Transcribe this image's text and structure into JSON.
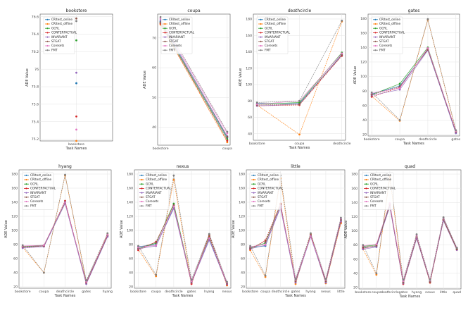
{
  "methods": [
    "CRltest_online",
    "CRltest_offline",
    "GCRL",
    "CONTERFACTUAL",
    "INVARIANT",
    "STGAT",
    "Coresets",
    "FMT"
  ],
  "colors": [
    "#1f77b4",
    "#ff7f0e",
    "#2ca02c",
    "#d62728",
    "#9467bd",
    "#8c564b",
    "#e377c2",
    "#7f7f7f"
  ],
  "chart_data": [
    {
      "type": "scatter",
      "title": "bookstore",
      "xlabel": "Task Names",
      "ylabel": "ADE Value",
      "categories": [
        "bookstore"
      ],
      "ylim": [
        75.18,
        76.63
      ],
      "yticks": [
        75.2,
        75.4,
        75.6,
        75.8,
        76.0,
        76.2,
        76.4,
        76.6
      ],
      "series": [
        {
          "name": "CRltest_online",
          "values": [
            75.84
          ]
        },
        {
          "name": "CRltest_offline",
          "values": [
            75.18
          ]
        },
        {
          "name": "GCRL",
          "values": [
            76.33
          ]
        },
        {
          "name": "CONTERFACTUAL",
          "values": [
            75.46
          ]
        },
        {
          "name": "INVARIANT",
          "values": [
            75.96
          ]
        },
        {
          "name": "STGAT",
          "values": [
            76.58
          ]
        },
        {
          "name": "Coresets",
          "values": [
            75.31
          ]
        },
        {
          "name": "FMT",
          "values": [
            76.55
          ]
        }
      ]
    },
    {
      "type": "line",
      "title": "coupa",
      "xlabel": "",
      "ylabel": "ADE Value",
      "categories": [
        "bookstore",
        "coupa"
      ],
      "ylim": [
        34,
        78
      ],
      "yticks": [
        40,
        50,
        60,
        70
      ],
      "series": [
        {
          "name": "CRltest_online",
          "values": [
            75.5,
            36.5
          ]
        },
        {
          "name": "CRltest_offline",
          "values": [
            74.5,
            35.0
          ]
        },
        {
          "name": "GCRL",
          "values": [
            75.0,
            36.0
          ]
        },
        {
          "name": "CONTERFACTUAL",
          "values": [
            74.8,
            35.5
          ]
        },
        {
          "name": "INVARIANT",
          "values": [
            76.0,
            37.0
          ]
        },
        {
          "name": "STGAT",
          "values": [
            75.2,
            36.8
          ]
        },
        {
          "name": "Coresets",
          "values": [
            76.5,
            38.0
          ]
        },
        {
          "name": "FMT",
          "values": [
            77.0,
            38.5
          ]
        }
      ]
    },
    {
      "type": "line",
      "title": "deathcircle",
      "xlabel": "Task Names",
      "ylabel": "ADE Value",
      "categories": [
        "bookstore",
        "coupa",
        "deathcircle"
      ],
      "ylim": [
        32,
        186
      ],
      "yticks": [
        40,
        60,
        80,
        100,
        120,
        140,
        160,
        180
      ],
      "series": [
        {
          "name": "CRltest_online",
          "values": [
            77,
            77,
            136
          ]
        },
        {
          "name": "CRltest_offline",
          "values": [
            75,
            39,
            177
          ]
        },
        {
          "name": "GCRL",
          "values": [
            76,
            78,
            139
          ]
        },
        {
          "name": "CONTERFACTUAL",
          "values": [
            74,
            75,
            135
          ]
        },
        {
          "name": "INVARIANT",
          "values": [
            74,
            76,
            137
          ]
        },
        {
          "name": "STGAT",
          "values": [
            75,
            76,
            136
          ]
        },
        {
          "name": "Coresets",
          "values": [
            76,
            80,
            138
          ]
        },
        {
          "name": "FMT",
          "values": [
            78,
            80,
            178
          ]
        }
      ]
    },
    {
      "type": "line",
      "title": "gates",
      "xlabel": "Task Names",
      "ylabel": "ADE Value",
      "categories": [
        "bookstore",
        "coupa",
        "deathcircle",
        "gates"
      ],
      "ylim": [
        18,
        186
      ],
      "yticks": [
        20,
        40,
        60,
        80,
        100,
        120,
        140,
        160,
        180
      ],
      "series": [
        {
          "name": "CRltest_online",
          "values": [
            76,
            87,
            137,
            22
          ]
        },
        {
          "name": "CRltest_offline",
          "values": [
            73,
            39,
            178,
            25
          ]
        },
        {
          "name": "GCRL",
          "values": [
            75,
            90,
            140,
            24
          ]
        },
        {
          "name": "CONTERFACTUAL",
          "values": [
            72,
            85,
            138,
            23
          ]
        },
        {
          "name": "INVARIANT",
          "values": [
            74,
            82,
            136,
            22
          ]
        },
        {
          "name": "STGAT",
          "values": [
            75,
            86,
            137,
            24
          ]
        },
        {
          "name": "Coresets",
          "values": [
            77,
            84,
            139,
            25
          ]
        },
        {
          "name": "FMT",
          "values": [
            78,
            40,
            179,
            26
          ]
        }
      ]
    },
    {
      "type": "line",
      "title": "hyang",
      "xlabel": "Task Names",
      "ylabel": "ADE Value",
      "categories": [
        "bookstore",
        "coupa",
        "deathcircle",
        "gates",
        "hyang"
      ],
      "ylim": [
        18,
        186
      ],
      "yticks": [
        20,
        40,
        60,
        80,
        100,
        120,
        140,
        160,
        180
      ],
      "series": [
        {
          "name": "CRltest_online",
          "values": [
            77,
            78,
            140,
            26,
            92
          ]
        },
        {
          "name": "CRltest_offline",
          "values": [
            76,
            40,
            178,
            27,
            95
          ]
        },
        {
          "name": "GCRL",
          "values": [
            77,
            79,
            139,
            28,
            93
          ]
        },
        {
          "name": "CONTERFACTUAL",
          "values": [
            76,
            78,
            142,
            25,
            92
          ]
        },
        {
          "name": "INVARIANT",
          "values": [
            75,
            77,
            138,
            24,
            91
          ]
        },
        {
          "name": "STGAT",
          "values": [
            77,
            78,
            141,
            26,
            93
          ]
        },
        {
          "name": "Coresets",
          "values": [
            78,
            79,
            140,
            27,
            94
          ]
        },
        {
          "name": "FMT",
          "values": [
            79,
            40,
            179,
            29,
            96
          ]
        }
      ]
    },
    {
      "type": "line",
      "title": "nexus",
      "xlabel": "Task Names",
      "ylabel": "ADE Value",
      "categories": [
        "bookstore",
        "coupa",
        "deathcircle",
        "gates",
        "hyang",
        "nexus"
      ],
      "ylim": [
        18,
        186
      ],
      "yticks": [
        20,
        40,
        60,
        80,
        100,
        120,
        140,
        160,
        180
      ],
      "series": [
        {
          "name": "CRltest_online",
          "values": [
            77,
            80,
            132,
            27,
            88,
            24
          ]
        },
        {
          "name": "CRltest_offline",
          "values": [
            73,
            35,
            172,
            25,
            92,
            22
          ]
        },
        {
          "name": "GCRL",
          "values": [
            74,
            82,
            138,
            28,
            90,
            25
          ]
        },
        {
          "name": "CONTERFACTUAL",
          "values": [
            72,
            84,
            135,
            24,
            93,
            23
          ]
        },
        {
          "name": "INVARIANT",
          "values": [
            74,
            78,
            131,
            26,
            86,
            24
          ]
        },
        {
          "name": "STGAT",
          "values": [
            75,
            83,
            136,
            27,
            94,
            25
          ]
        },
        {
          "name": "Coresets",
          "values": [
            76,
            79,
            134,
            28,
            89,
            26
          ]
        },
        {
          "name": "FMT",
          "values": [
            78,
            37,
            178,
            30,
            95,
            27
          ]
        }
      ]
    },
    {
      "type": "line",
      "title": "little",
      "xlabel": "Task Names",
      "ylabel": "ADE Value",
      "categories": [
        "bookstore",
        "coupa",
        "deathcircle",
        "gates",
        "hyang",
        "nexus",
        "little"
      ],
      "ylim": [
        18,
        186
      ],
      "yticks": [
        20,
        40,
        60,
        80,
        100,
        120,
        140,
        160,
        180
      ],
      "series": [
        {
          "name": "CRltest_online",
          "values": [
            76,
            78,
            134,
            30,
            92,
            28,
            116
          ]
        },
        {
          "name": "CRltest_offline",
          "values": [
            72,
            34,
            174,
            24,
            95,
            25,
            110
          ]
        },
        {
          "name": "GCRL",
          "values": [
            75,
            82,
            137,
            29,
            93,
            29,
            114
          ]
        },
        {
          "name": "CONTERFACTUAL",
          "values": [
            73,
            86,
            138,
            27,
            94,
            27,
            112
          ]
        },
        {
          "name": "INVARIANT",
          "values": [
            74,
            79,
            132,
            26,
            91,
            26,
            113
          ]
        },
        {
          "name": "STGAT",
          "values": [
            75,
            84,
            136,
            28,
            93,
            28,
            115
          ]
        },
        {
          "name": "Coresets",
          "values": [
            77,
            80,
            135,
            30,
            92,
            30,
            117
          ]
        },
        {
          "name": "FMT",
          "values": [
            78,
            36,
            178,
            31,
            96,
            31,
            118
          ]
        }
      ]
    },
    {
      "type": "line",
      "title": "quad",
      "xlabel": "Task Names",
      "ylabel": "ADE Value",
      "categories": [
        "bookstore",
        "coupa",
        "deathcircle",
        "gates",
        "hyang",
        "nexus",
        "little",
        "quad"
      ],
      "ylim": [
        18,
        186
      ],
      "yticks": [
        20,
        40,
        60,
        80,
        100,
        120,
        140,
        160,
        180
      ],
      "series": [
        {
          "name": "CRltest_online",
          "values": [
            76,
            78,
            136,
            27,
            90,
            28,
            116,
            74
          ]
        },
        {
          "name": "CRltest_offline",
          "values": [
            74,
            38,
            176,
            26,
            92,
            27,
            115,
            73
          ]
        },
        {
          "name": "GCRL",
          "values": [
            78,
            80,
            138,
            28,
            91,
            29,
            116,
            75
          ]
        },
        {
          "name": "CONTERFACTUAL",
          "values": [
            75,
            79,
            135,
            25,
            90,
            27,
            115,
            74
          ]
        },
        {
          "name": "INVARIANT",
          "values": [
            74,
            77,
            134,
            26,
            89,
            28,
            114,
            73
          ]
        },
        {
          "name": "STGAT",
          "values": [
            77,
            79,
            137,
            27,
            91,
            28,
            116,
            74
          ]
        },
        {
          "name": "Coresets",
          "values": [
            79,
            81,
            139,
            29,
            93,
            30,
            118,
            76
          ]
        },
        {
          "name": "FMT",
          "values": [
            80,
            40,
            179,
            31,
            95,
            31,
            119,
            76
          ]
        }
      ]
    }
  ]
}
